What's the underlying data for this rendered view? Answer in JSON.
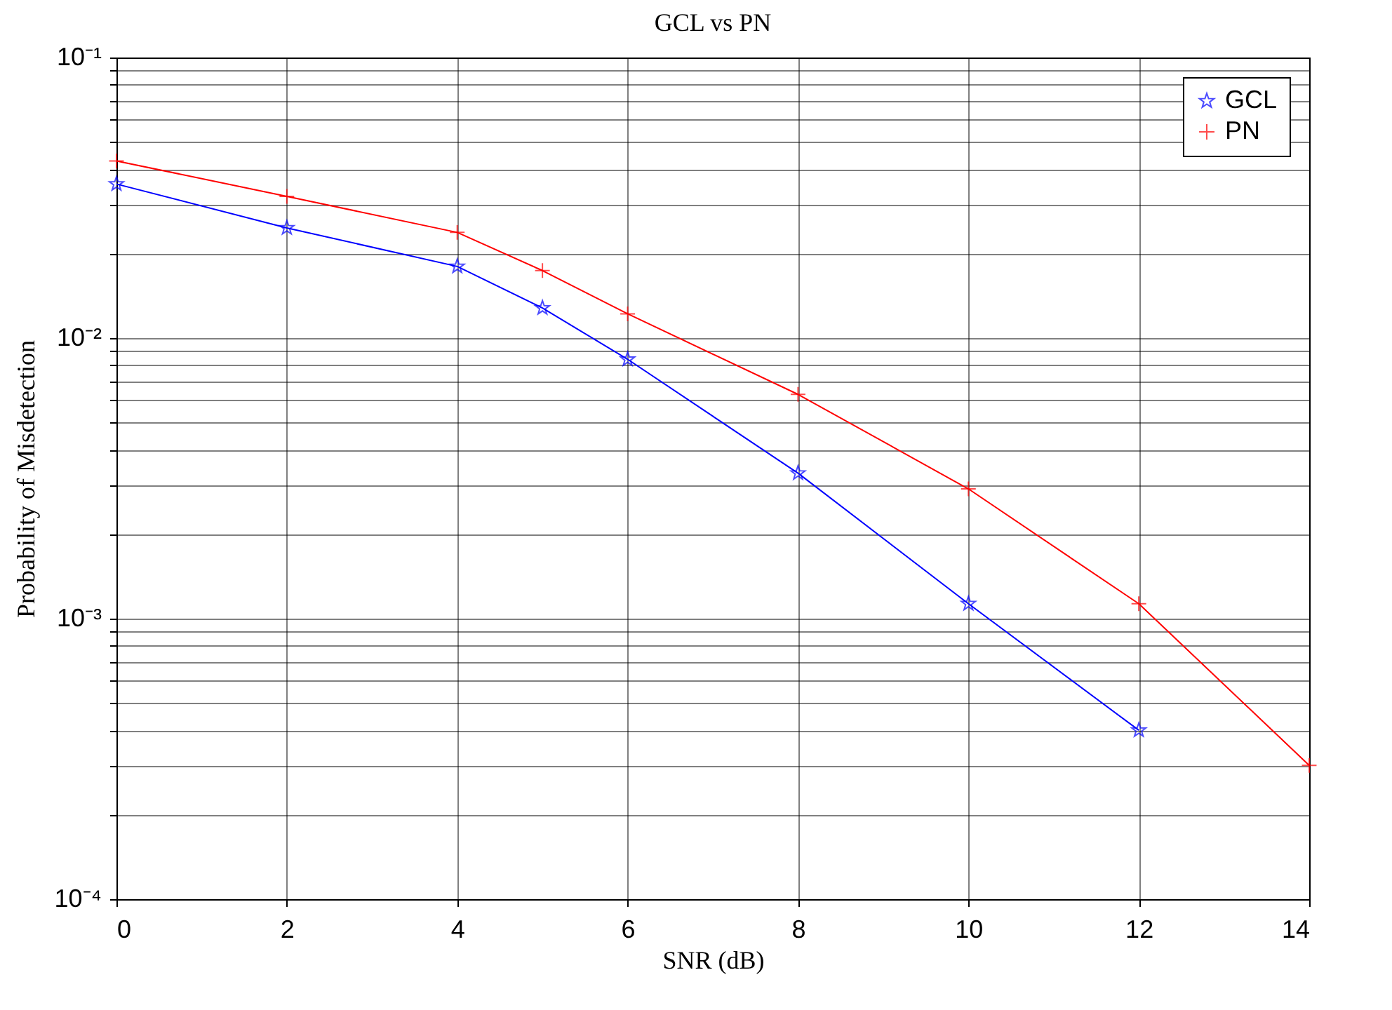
{
  "chart_data": {
    "type": "line",
    "title": "GCL vs PN",
    "xlabel": "SNR  (dB)",
    "ylabel": "Probability of  Misdetection",
    "log": "y",
    "grid": true,
    "legend": "top right",
    "xlim": [
      0,
      14
    ],
    "xticks": [
      0,
      2,
      4,
      6,
      8,
      10,
      12,
      14
    ],
    "ylim": [
      0.0001,
      0.1
    ],
    "yticks": [
      {
        "value": 0.0001,
        "label": "10⁻⁴"
      },
      {
        "value": 0.0002,
        "label": null
      },
      {
        "value": 0.0003,
        "label": null
      },
      {
        "value": 0.0004,
        "label": null
      },
      {
        "value": 0.0005,
        "label": null
      },
      {
        "value": 0.0006,
        "label": null
      },
      {
        "value": 0.0007,
        "label": null
      },
      {
        "value": 0.0008,
        "label": null
      },
      {
        "value": 0.0009,
        "label": null
      },
      {
        "value": 0.001,
        "label": "10⁻³"
      },
      {
        "value": 0.002,
        "label": null
      },
      {
        "value": 0.003,
        "label": null
      },
      {
        "value": 0.004,
        "label": null
      },
      {
        "value": 0.005,
        "label": null
      },
      {
        "value": 0.006,
        "label": null
      },
      {
        "value": 0.007,
        "label": null
      },
      {
        "value": 0.008,
        "label": null
      },
      {
        "value": 0.009,
        "label": null
      },
      {
        "value": 0.01,
        "label": "10⁻²"
      },
      {
        "value": 0.02,
        "label": null
      },
      {
        "value": 0.03,
        "label": null
      },
      {
        "value": 0.04,
        "label": null
      },
      {
        "value": 0.05,
        "label": null
      },
      {
        "value": 0.06,
        "label": null
      },
      {
        "value": 0.07,
        "label": null
      },
      {
        "value": 0.08,
        "label": null
      },
      {
        "value": 0.09,
        "label": null
      },
      {
        "value": 0.1,
        "label": "10⁻¹"
      }
    ],
    "series": [
      {
        "name": "GCL",
        "color": "#0000ff",
        "marker": "star",
        "x": [
          0,
          2,
          4,
          5,
          6,
          8,
          10,
          12
        ],
        "values": [
          0.0354,
          0.0247,
          0.018,
          0.0128,
          0.0084,
          0.0033,
          0.00113,
          0.0004
        ]
      },
      {
        "name": "PN",
        "color": "#ff0000",
        "marker": "cross",
        "x": [
          0,
          2,
          4,
          5,
          6,
          8,
          10,
          12,
          14
        ],
        "values": [
          0.0428,
          0.032,
          0.0238,
          0.0174,
          0.0122,
          0.0063,
          0.0029,
          0.00113,
          0.0003
        ]
      }
    ]
  }
}
